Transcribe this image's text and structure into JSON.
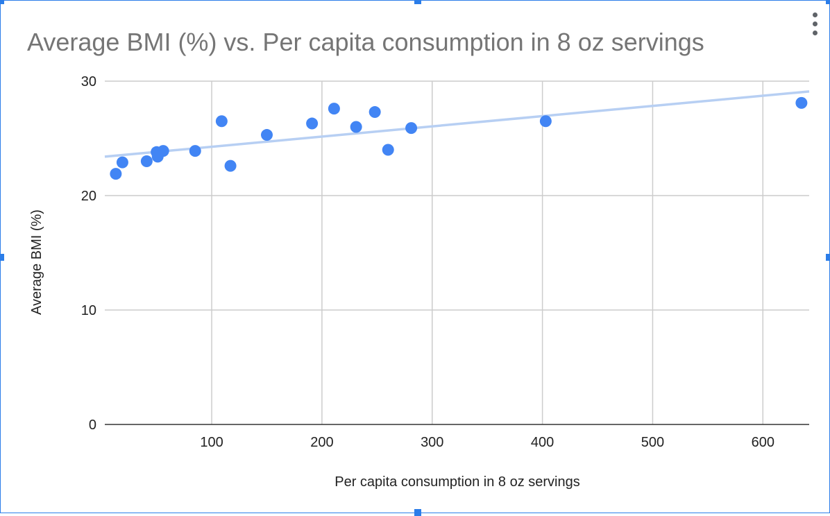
{
  "chart_data": {
    "type": "scatter",
    "title": "Average BMI (%) vs. Per capita consumption in 8 oz servings",
    "xlabel": "Per capita consumption in 8 oz servings",
    "ylabel": "Average BMI (%)",
    "xlim": [
      3,
      642
    ],
    "ylim": [
      0,
      30
    ],
    "x_ticks": [
      100,
      200,
      300,
      400,
      500,
      600
    ],
    "y_ticks": [
      0,
      10,
      20,
      30
    ],
    "grid": true,
    "legend": "none",
    "point_color": "#4285f4",
    "trendline_color": "#b7cff3",
    "trendline": {
      "x1": 3,
      "y1": 23.4,
      "x2": 642,
      "y2": 29.1
    },
    "points": [
      {
        "x": 13,
        "y": 21.9
      },
      {
        "x": 19,
        "y": 22.9
      },
      {
        "x": 41,
        "y": 23.0
      },
      {
        "x": 50,
        "y": 23.8
      },
      {
        "x": 51,
        "y": 23.4
      },
      {
        "x": 56,
        "y": 23.9
      },
      {
        "x": 85,
        "y": 23.9
      },
      {
        "x": 109,
        "y": 26.5
      },
      {
        "x": 117,
        "y": 22.6
      },
      {
        "x": 150,
        "y": 25.3
      },
      {
        "x": 191,
        "y": 26.3
      },
      {
        "x": 211,
        "y": 27.6
      },
      {
        "x": 231,
        "y": 26.0
      },
      {
        "x": 248,
        "y": 27.3
      },
      {
        "x": 260,
        "y": 24.0
      },
      {
        "x": 281,
        "y": 25.9
      },
      {
        "x": 403,
        "y": 26.5
      },
      {
        "x": 635,
        "y": 28.1
      }
    ]
  }
}
